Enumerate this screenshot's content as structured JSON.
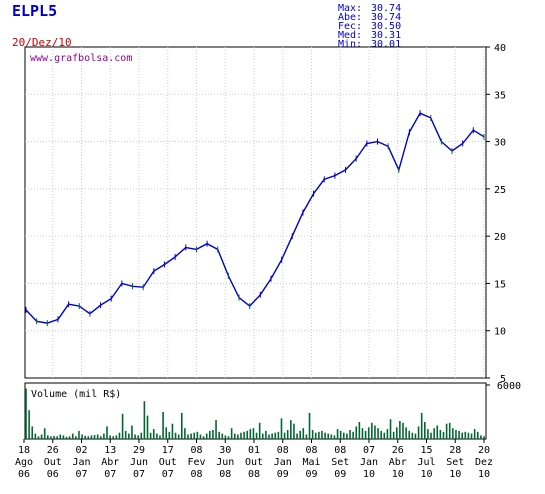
{
  "header": {
    "ticker": "ELPL5",
    "date": "20/Dez/10",
    "stats": [
      {
        "label": "Max:",
        "value": "30.74"
      },
      {
        "label": "Abe:",
        "value": "30.74"
      },
      {
        "label": "Fec:",
        "value": "30.50"
      },
      {
        "label": "Med:",
        "value": "30.31"
      },
      {
        "label": "Min:",
        "value": "30.01"
      }
    ]
  },
  "watermark": "www.grafbolsa.com",
  "colors": {
    "ticker": "#0000cc",
    "date": "#cc0000",
    "stats": "#0000cc",
    "watermark": "#990099",
    "up_bar": "#0000cc",
    "down_bar": "#006633",
    "volume": "#006633",
    "axis": "#000000",
    "grid": "#cccccc"
  },
  "chart_data": [
    {
      "type": "line",
      "name": "price",
      "ylim": [
        5,
        40
      ],
      "yticks": [
        "5",
        "10",
        "15",
        "20",
        "25",
        "30",
        "35",
        "40"
      ],
      "grid": true,
      "x_labels": [
        {
          "day": "18",
          "mon": "Ago",
          "yr": "06"
        },
        {
          "day": "26",
          "mon": "Out",
          "yr": "06"
        },
        {
          "day": "02",
          "mon": "Jan",
          "yr": "07"
        },
        {
          "day": "13",
          "mon": "Abr",
          "yr": "07"
        },
        {
          "day": "29",
          "mon": "Jun",
          "yr": "07"
        },
        {
          "day": "17",
          "mon": "Out",
          "yr": "07"
        },
        {
          "day": "08",
          "mon": "Fev",
          "yr": "08"
        },
        {
          "day": "30",
          "mon": "Jun",
          "yr": "08"
        },
        {
          "day": "01",
          "mon": "Out",
          "yr": "08"
        },
        {
          "day": "08",
          "mon": "Jan",
          "yr": "09"
        },
        {
          "day": "08",
          "mon": "Mai",
          "yr": "09"
        },
        {
          "day": "08",
          "mon": "Set",
          "yr": "09"
        },
        {
          "day": "07",
          "mon": "Jan",
          "yr": "10"
        },
        {
          "day": "26",
          "mon": "Abr",
          "yr": "10"
        },
        {
          "day": "15",
          "mon": "Jul",
          "yr": "10"
        },
        {
          "day": "28",
          "mon": "Set",
          "yr": "10"
        },
        {
          "day": "20",
          "mon": "Dez",
          "yr": "10"
        }
      ],
      "values": [
        12.2,
        11.0,
        10.8,
        11.2,
        12.8,
        12.6,
        11.8,
        12.7,
        13.4,
        15.0,
        14.7,
        14.6,
        16.3,
        17.0,
        17.8,
        18.8,
        18.6,
        19.2,
        18.6,
        15.8,
        13.5,
        12.6,
        13.8,
        15.5,
        17.5,
        20.0,
        22.5,
        24.5,
        26.0,
        26.4,
        27.0,
        28.2,
        29.8,
        30.0,
        29.5,
        27.0,
        31.0,
        33.0,
        32.5,
        30.0,
        29.0,
        29.8,
        31.2,
        30.5
      ]
    },
    {
      "type": "bar",
      "name": "volume",
      "ylabel": "Volume (mil R$)",
      "ylim": [
        0,
        6000
      ],
      "yticks": [
        "6000"
      ],
      "values": [
        5600,
        3200,
        1400,
        600,
        300,
        500,
        1200,
        400,
        300,
        350,
        300,
        500,
        400,
        250,
        300,
        600,
        300,
        900,
        500,
        350,
        300,
        400,
        450,
        500,
        300,
        600,
        1400,
        400,
        300,
        400,
        700,
        2800,
        900,
        600,
        1500,
        500,
        400,
        700,
        4200,
        2600,
        700,
        1100,
        600,
        400,
        3000,
        1300,
        800,
        1700,
        700,
        500,
        2900,
        1200,
        500,
        600,
        700,
        800,
        500,
        300,
        600,
        900,
        1000,
        2100,
        800,
        600,
        400,
        300,
        1200,
        600,
        500,
        700,
        800,
        900,
        1100,
        1200,
        700,
        1800,
        600,
        900,
        500,
        600,
        700,
        800,
        2300,
        700,
        1000,
        2100,
        1700,
        600,
        900,
        1200,
        500,
        2900,
        1000,
        700,
        800,
        900,
        700,
        600,
        500,
        400,
        1100,
        900,
        700,
        600,
        1000,
        800,
        1400,
        1900,
        1200,
        900,
        1300,
        1800,
        1500,
        1200,
        900,
        700,
        1100,
        2200,
        800,
        1300,
        2000,
        1800,
        1300,
        900,
        700,
        600,
        1400,
        2900,
        1900,
        1100,
        700,
        1200,
        1500,
        1000,
        800,
        1700,
        1800,
        1200,
        1000,
        900,
        700,
        800,
        700,
        600,
        1100,
        800,
        400,
        300
      ]
    }
  ]
}
